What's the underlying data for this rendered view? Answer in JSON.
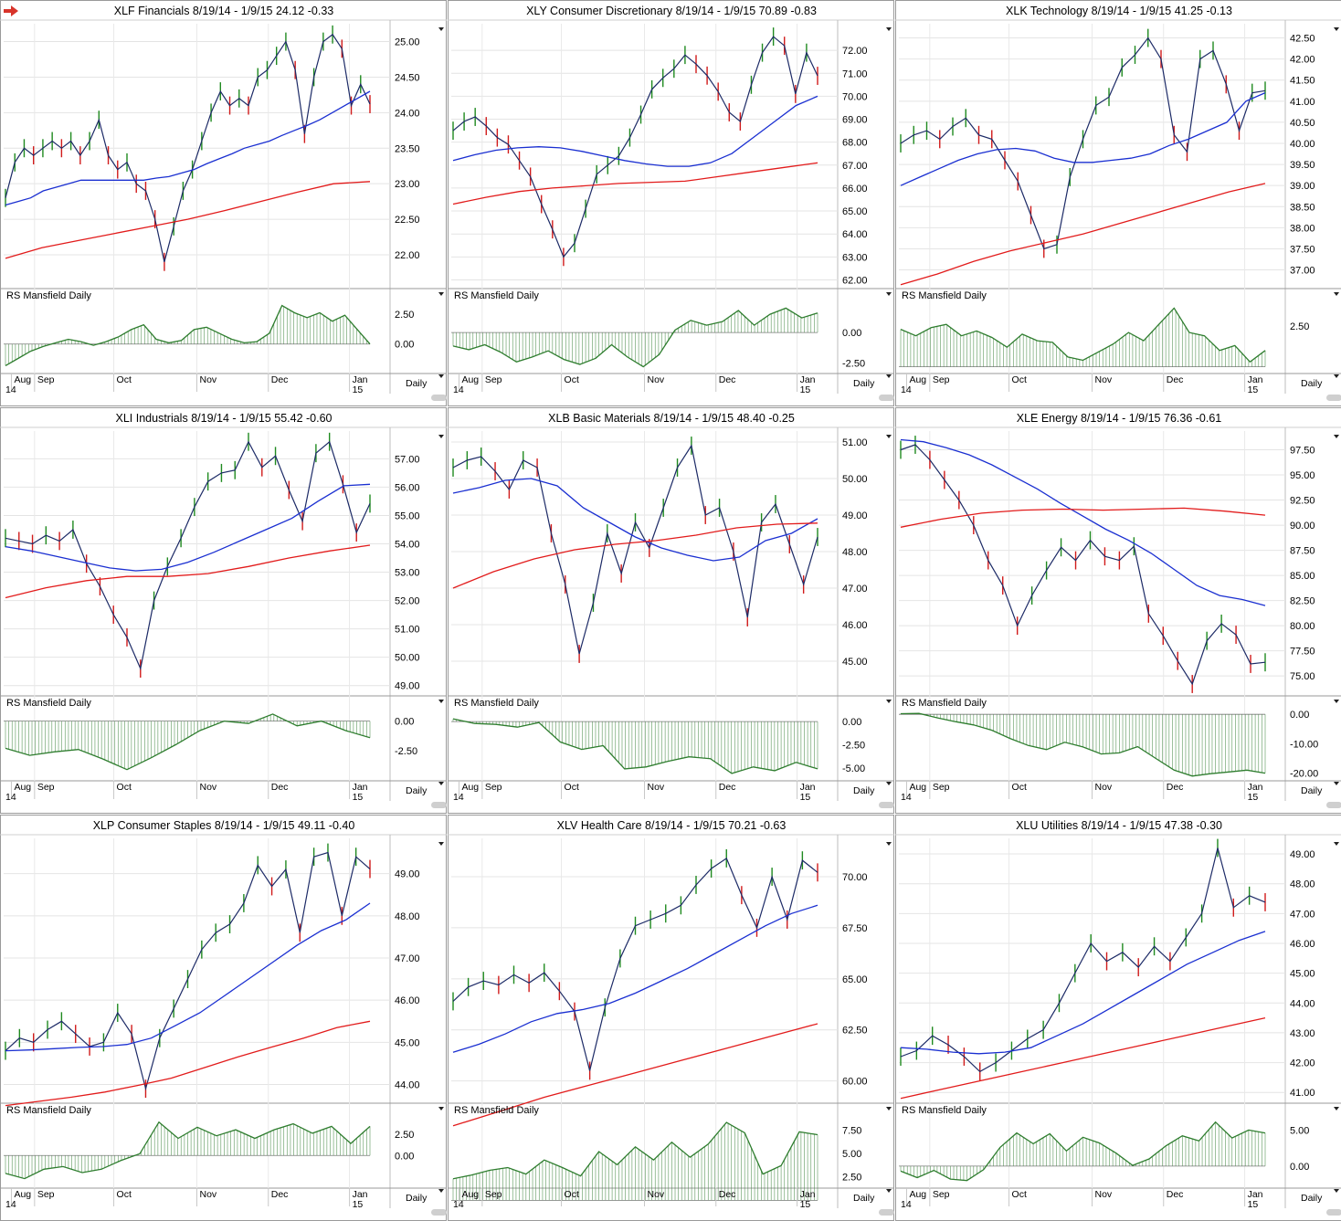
{
  "toolbar": {
    "nav_icon": "red-right-arrow-icon"
  },
  "colors": {
    "ma_fast": "#1a2fd1",
    "ma_slow": "#e21b1b",
    "up_bar": "#1f8a1f",
    "down_bar": "#d11b1b",
    "price_line": "#1c2a66",
    "rs_line": "#2e7d2e",
    "rs_fill": "#4e8f4e",
    "grid": "#e4e4e4",
    "frame": "#9a9a9a"
  },
  "common": {
    "date_range": "8/19/14 - 1/9/15",
    "rs_label": "RS Mansfield Daily",
    "period_label": "Daily",
    "month_labels": [
      "Aug",
      "Sep",
      "Oct",
      "Nov",
      "Dec",
      "Jan"
    ],
    "year_labels": [
      "14",
      "15"
    ]
  },
  "chart_data": [
    {
      "type": "line",
      "symbol": "XLF",
      "name": "Financials",
      "last": "24.12",
      "change": "-0.33",
      "yticks": [
        "22.00",
        "22.50",
        "23.00",
        "23.50",
        "24.00",
        "24.50",
        "25.00"
      ],
      "ylim": [
        21.55,
        25.2
      ],
      "price": [
        22.8,
        23.3,
        23.5,
        23.4,
        23.5,
        23.6,
        23.5,
        23.6,
        23.4,
        23.6,
        23.9,
        23.4,
        23.2,
        23.3,
        23.0,
        22.9,
        22.5,
        21.9,
        22.4,
        22.9,
        23.2,
        23.6,
        24.0,
        24.3,
        24.1,
        24.2,
        24.1,
        24.5,
        24.6,
        24.8,
        25.0,
        24.6,
        23.7,
        24.5,
        25.0,
        25.1,
        24.9,
        24.1,
        24.4,
        24.12
      ],
      "ma50": [
        22.7,
        22.75,
        22.8,
        22.9,
        22.95,
        23.0,
        23.05,
        23.05,
        23.05,
        23.05,
        23.05,
        23.05,
        23.08,
        23.1,
        23.15,
        23.2,
        23.28,
        23.35,
        23.42,
        23.5,
        23.55,
        23.6,
        23.68,
        23.75,
        23.82,
        23.9,
        24.0,
        24.1,
        24.2,
        24.3
      ],
      "ma200": [
        21.95,
        22.1,
        22.2,
        22.3,
        22.4,
        22.5,
        22.62,
        22.75,
        22.88,
        23.0,
        23.03
      ],
      "rs_yticks": [
        "0.00",
        "2.50"
      ],
      "rs_ylim": [
        -2.3,
        3.4
      ],
      "rs": [
        -1.8,
        -1.2,
        -0.6,
        -0.2,
        0.1,
        0.4,
        0.2,
        -0.1,
        0.2,
        0.6,
        1.2,
        1.6,
        0.4,
        0.1,
        0.3,
        1.2,
        1.4,
        0.9,
        0.4,
        0.1,
        0.2,
        0.9,
        3.2,
        2.6,
        2.2,
        2.6,
        1.9,
        2.4,
        1.2,
        0.0
      ]
    },
    {
      "type": "line",
      "symbol": "XLY",
      "name": "Consumer Discretionary",
      "last": "70.89",
      "change": "-0.83",
      "yticks": [
        "62.00",
        "63.00",
        "64.00",
        "65.00",
        "66.00",
        "67.00",
        "68.00",
        "69.00",
        "70.00",
        "71.00",
        "72.00"
      ],
      "ylim": [
        61.7,
        73.0
      ],
      "price": [
        68.5,
        68.9,
        69.1,
        68.7,
        68.2,
        67.9,
        67.2,
        66.5,
        65.3,
        64.2,
        63.0,
        63.6,
        65.1,
        66.6,
        67.0,
        67.4,
        68.2,
        69.2,
        70.3,
        70.8,
        71.2,
        71.8,
        71.4,
        70.9,
        70.2,
        69.3,
        68.9,
        70.5,
        71.9,
        72.6,
        72.2,
        70.1,
        71.9,
        70.89
      ],
      "ma50": [
        67.2,
        67.45,
        67.65,
        67.75,
        67.8,
        67.75,
        67.6,
        67.4,
        67.2,
        67.05,
        66.95,
        66.95,
        67.1,
        67.5,
        68.2,
        68.9,
        69.6,
        70.0
      ],
      "ma200": [
        65.3,
        65.6,
        65.85,
        66.0,
        66.1,
        66.2,
        66.25,
        66.3,
        66.5,
        66.7,
        66.9,
        67.1
      ],
      "rs_yticks": [
        "-2.50",
        "0.00"
      ],
      "rs_ylim": [
        -3.2,
        2.4
      ],
      "rs": [
        -1.1,
        -1.4,
        -1.0,
        -1.6,
        -2.4,
        -2.0,
        -1.5,
        -2.2,
        -2.6,
        -2.1,
        -1.0,
        -2.0,
        -2.8,
        -1.8,
        0.2,
        1.0,
        0.6,
        0.9,
        1.8,
        0.6,
        1.5,
        2.0,
        1.2,
        1.6
      ]
    },
    {
      "type": "line",
      "symbol": "XLK",
      "name": "Technology",
      "last": "41.25",
      "change": "-0.13",
      "yticks": [
        "37.00",
        "37.50",
        "38.00",
        "38.50",
        "39.00",
        "39.50",
        "40.00",
        "40.50",
        "41.00",
        "41.50",
        "42.00",
        "42.50"
      ],
      "ylim": [
        36.6,
        42.75
      ],
      "price": [
        40.0,
        40.2,
        40.3,
        40.1,
        40.4,
        40.6,
        40.2,
        40.1,
        39.6,
        39.1,
        38.3,
        37.5,
        37.6,
        39.2,
        40.1,
        40.9,
        41.1,
        41.8,
        42.1,
        42.5,
        42.0,
        40.2,
        39.8,
        42.0,
        42.2,
        41.4,
        40.3,
        41.2,
        41.25
      ],
      "ma50": [
        39.0,
        39.2,
        39.4,
        39.6,
        39.75,
        39.85,
        39.88,
        39.82,
        39.65,
        39.55,
        39.55,
        39.6,
        39.65,
        39.75,
        39.95,
        40.1,
        40.3,
        40.5,
        41.0,
        41.2
      ],
      "ma200": [
        36.65,
        36.9,
        37.2,
        37.45,
        37.65,
        37.85,
        38.1,
        38.35,
        38.6,
        38.85,
        39.05
      ],
      "rs_yticks": [
        "2.50"
      ],
      "rs_ylim": [
        -0.3,
        3.9
      ],
      "rs": [
        2.3,
        1.9,
        2.4,
        2.6,
        1.9,
        2.2,
        1.8,
        1.2,
        2.0,
        1.6,
        1.5,
        0.6,
        0.4,
        0.9,
        1.4,
        2.1,
        1.6,
        2.6,
        3.6,
        2.1,
        1.9,
        1.0,
        1.3,
        0.3,
        1.0
      ]
    },
    {
      "type": "line",
      "symbol": "XLI",
      "name": "Industrials",
      "last": "55.42",
      "change": "-0.60",
      "yticks": [
        "49.00",
        "50.00",
        "51.00",
        "52.00",
        "53.00",
        "54.00",
        "55.00",
        "56.00",
        "57.00"
      ],
      "ylim": [
        48.7,
        57.85
      ],
      "price": [
        54.2,
        54.1,
        54.0,
        54.3,
        54.1,
        54.5,
        53.3,
        52.5,
        51.5,
        50.7,
        49.6,
        52.0,
        53.2,
        54.2,
        55.3,
        56.2,
        56.5,
        56.6,
        57.6,
        56.7,
        57.1,
        55.9,
        54.8,
        57.2,
        57.6,
        56.1,
        54.4,
        55.42
      ],
      "ma50": [
        53.9,
        53.75,
        53.55,
        53.35,
        53.15,
        53.05,
        53.1,
        53.35,
        53.7,
        54.1,
        54.5,
        54.9,
        55.5,
        56.05,
        56.1
      ],
      "ma200": [
        52.1,
        52.45,
        52.7,
        52.85,
        52.85,
        52.95,
        53.2,
        53.5,
        53.75,
        53.95
      ],
      "rs_yticks": [
        "-2.50",
        "0.00"
      ],
      "rs_ylim": [
        -4.9,
        0.9
      ],
      "rs": [
        -2.3,
        -2.9,
        -2.6,
        -2.4,
        -3.2,
        -4.1,
        -3.1,
        -2.0,
        -0.8,
        0.0,
        -0.2,
        0.6,
        -0.4,
        0.0,
        -0.8,
        -1.4
      ]
    },
    {
      "type": "line",
      "symbol": "XLB",
      "name": "Basic Materials",
      "last": "48.40",
      "change": "-0.25",
      "yticks": [
        "45.00",
        "46.00",
        "47.00",
        "48.00",
        "49.00",
        "50.00",
        "51.00"
      ],
      "ylim": [
        44.1,
        51.2
      ],
      "price": [
        50.3,
        50.5,
        50.6,
        50.2,
        49.7,
        50.5,
        50.3,
        48.5,
        47.1,
        45.2,
        46.6,
        48.5,
        47.4,
        48.8,
        48.1,
        49.2,
        50.3,
        50.9,
        49.0,
        49.2,
        48.0,
        46.2,
        48.8,
        49.3,
        48.2,
        47.1,
        48.4
      ],
      "ma50": [
        49.6,
        49.75,
        49.95,
        50.0,
        49.8,
        49.2,
        48.8,
        48.4,
        48.1,
        47.9,
        47.75,
        47.85,
        48.3,
        48.5,
        48.9
      ],
      "ma200": [
        47.0,
        47.45,
        47.8,
        48.05,
        48.2,
        48.3,
        48.45,
        48.65,
        48.75,
        48.78
      ],
      "rs_yticks": [
        "-5.00",
        "-2.50",
        "0.00"
      ],
      "rs_ylim": [
        -6.2,
        1.2
      ],
      "rs": [
        0.3,
        -0.2,
        -0.3,
        -0.6,
        -0.1,
        -2.2,
        -3.0,
        -2.6,
        -5.1,
        -4.9,
        -4.3,
        -3.8,
        -4.0,
        -5.6,
        -4.9,
        -5.3,
        -4.4,
        -5.1
      ]
    },
    {
      "type": "line",
      "symbol": "XLE",
      "name": "Energy",
      "last": "76.36",
      "change": "-0.61",
      "yticks": [
        "75.00",
        "77.50",
        "80.00",
        "82.50",
        "85.00",
        "87.50",
        "90.00",
        "92.50",
        "95.00",
        "97.50"
      ],
      "ylim": [
        73.2,
        99.0
      ],
      "price": [
        97.5,
        98.0,
        96.5,
        94.5,
        92.5,
        90.0,
        86.5,
        84.0,
        80.0,
        83.0,
        85.5,
        87.8,
        86.5,
        88.5,
        86.9,
        86.5,
        87.9,
        81.2,
        79.0,
        76.5,
        74.2,
        78.5,
        80.2,
        79.1,
        76.2,
        76.36
      ],
      "ma50": [
        98.5,
        98.3,
        97.7,
        97.0,
        96.0,
        94.8,
        93.6,
        92.2,
        90.9,
        89.6,
        88.5,
        87.2,
        85.6,
        84.0,
        83.0,
        82.6,
        82.0
      ],
      "ma200": [
        89.8,
        90.6,
        91.2,
        91.5,
        91.6,
        91.5,
        91.6,
        91.7,
        91.4,
        91.0
      ],
      "rs_yticks": [
        "-20.00",
        "-10.00",
        "0.00"
      ],
      "rs_ylim": [
        -22.0,
        1.3
      ],
      "rs": [
        0.2,
        0.3,
        -1.2,
        -2.5,
        -3.6,
        -5.4,
        -8.2,
        -10.6,
        -12.0,
        -9.5,
        -11.1,
        -13.5,
        -13.1,
        -11.0,
        -15.0,
        -19.0,
        -21.0,
        -20.2,
        -19.6,
        -19.0,
        -20.0
      ]
    },
    {
      "type": "line",
      "symbol": "XLP",
      "name": "Consumer Staples",
      "last": "49.11",
      "change": "-0.40",
      "yticks": [
        "44.00",
        "45.00",
        "46.00",
        "47.00",
        "48.00",
        "49.00"
      ],
      "ylim": [
        43.6,
        49.75
      ],
      "price": [
        44.8,
        45.1,
        45.0,
        45.3,
        45.5,
        45.2,
        44.9,
        45.0,
        45.7,
        45.2,
        43.9,
        45.1,
        45.8,
        46.5,
        47.2,
        47.6,
        47.8,
        48.3,
        49.2,
        48.7,
        49.1,
        47.6,
        49.4,
        49.5,
        48.0,
        49.4,
        49.11
      ],
      "ma50": [
        44.8,
        44.82,
        44.85,
        44.88,
        44.9,
        44.95,
        45.1,
        45.4,
        45.7,
        46.1,
        46.5,
        46.9,
        47.3,
        47.65,
        47.9,
        48.3
      ],
      "ma200": [
        43.5,
        43.6,
        43.7,
        43.82,
        43.98,
        44.15,
        44.4,
        44.65,
        44.88,
        45.1,
        45.35,
        45.5
      ],
      "rs_yticks": [
        "0.00",
        "2.50"
      ],
      "rs_ylim": [
        -3.6,
        4.4
      ],
      "rs": [
        -2.1,
        -2.7,
        -1.6,
        -1.3,
        -2.0,
        -1.6,
        -0.6,
        0.2,
        3.9,
        2.0,
        3.3,
        2.3,
        3.0,
        2.0,
        3.0,
        3.7,
        2.6,
        3.4,
        1.4,
        3.4
      ]
    },
    {
      "type": "line",
      "symbol": "XLV",
      "name": "Health Care",
      "last": "70.21",
      "change": "-0.63",
      "yticks": [
        "60.00",
        "62.50",
        "65.00",
        "67.50",
        "70.00"
      ],
      "ylim": [
        59.0,
        71.7
      ],
      "price": [
        63.9,
        64.6,
        64.9,
        64.7,
        65.2,
        64.8,
        65.3,
        64.4,
        63.4,
        60.5,
        63.6,
        66.0,
        67.6,
        67.9,
        68.2,
        68.6,
        69.6,
        70.4,
        70.9,
        69.1,
        67.5,
        70.0,
        67.9,
        70.8,
        70.21
      ],
      "ma50": [
        61.4,
        61.8,
        62.3,
        62.9,
        63.3,
        63.5,
        63.8,
        64.3,
        64.9,
        65.5,
        66.2,
        66.9,
        67.6,
        68.2,
        68.6
      ],
      "ma200": [
        57.8,
        58.5,
        59.2,
        59.8,
        60.4,
        61.0,
        61.6,
        62.2,
        62.8
      ],
      "rs_yticks": [
        "2.50",
        "5.00",
        "7.50"
      ],
      "rs_ylim": [
        1.5,
        8.8
      ],
      "rs": [
        2.3,
        2.7,
        3.2,
        3.5,
        2.8,
        4.3,
        3.5,
        2.6,
        5.2,
        3.8,
        5.7,
        4.3,
        6.2,
        4.6,
        6.0,
        8.3,
        7.2,
        2.8,
        3.7,
        7.3,
        7.0
      ]
    },
    {
      "type": "line",
      "symbol": "XLU",
      "name": "Utilities",
      "last": "47.38",
      "change": "-0.30",
      "yticks": [
        "41.00",
        "42.00",
        "43.00",
        "44.00",
        "45.00",
        "46.00",
        "47.00",
        "48.00",
        "49.00"
      ],
      "ylim": [
        40.7,
        49.4
      ],
      "price": [
        42.2,
        42.4,
        42.9,
        42.6,
        42.2,
        41.7,
        42.0,
        42.4,
        42.8,
        43.1,
        44.0,
        45.0,
        46.0,
        45.4,
        45.7,
        45.2,
        45.9,
        45.4,
        46.2,
        47.0,
        49.2,
        47.2,
        47.6,
        47.38
      ],
      "ma50": [
        42.5,
        42.45,
        42.35,
        42.3,
        42.35,
        42.5,
        42.9,
        43.3,
        43.8,
        44.3,
        44.8,
        45.3,
        45.7,
        46.1,
        46.4
      ],
      "ma200": [
        40.8,
        41.1,
        41.4,
        41.7,
        42.0,
        42.3,
        42.6,
        42.9,
        43.2,
        43.5
      ],
      "rs_yticks": [
        "0.00",
        "5.00"
      ],
      "rs_ylim": [
        -2.8,
        6.7
      ],
      "rs": [
        -0.7,
        -1.6,
        -0.6,
        -1.8,
        -2.0,
        -0.5,
        2.6,
        4.6,
        3.1,
        4.5,
        2.1,
        4.0,
        3.2,
        1.8,
        0.1,
        1.0,
        2.8,
        4.2,
        3.5,
        6.1,
        3.9,
        5.0,
        4.6
      ]
    }
  ]
}
